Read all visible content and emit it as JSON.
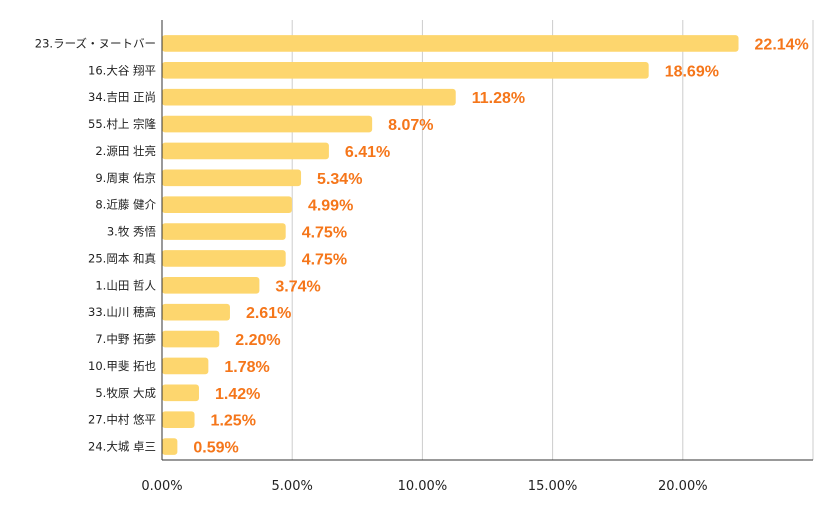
{
  "chart_data": {
    "type": "bar",
    "orientation": "horizontal",
    "categories": [
      "23.ラーズ・ヌートバー",
      "16.大谷 翔平",
      "34.吉田 正尚",
      "55.村上 宗隆",
      "2.源田 壮亮",
      "9.周東 佑京",
      "8.近藤 健介",
      "3.牧 秀悟",
      "25.岡本 和真",
      "1.山田 哲人",
      "33.山川 穂高",
      "7.中野 拓夢",
      "10.甲斐 拓也",
      "5.牧原 大成",
      "27.中村 悠平",
      "24.大城 卓三"
    ],
    "values": [
      22.14,
      18.69,
      11.28,
      8.07,
      6.41,
      5.34,
      4.99,
      4.75,
      4.75,
      3.74,
      2.61,
      2.2,
      1.78,
      1.42,
      1.25,
      0.59
    ],
    "data_labels": [
      "22.14%",
      "18.69%",
      "11.28%",
      "8.07%",
      "6.41%",
      "5.34%",
      "4.99%",
      "4.75%",
      "4.75%",
      "3.74%",
      "2.61%",
      "2.20%",
      "1.78%",
      "1.42%",
      "1.25%",
      "0.59%"
    ],
    "x_ticks": [
      0,
      5,
      10,
      15,
      20
    ],
    "x_tick_labels": [
      "0.00%",
      "5.00%",
      "10.00%",
      "15.00%",
      "20.00%"
    ],
    "xlim": [
      0,
      25
    ],
    "title": "",
    "xlabel": "",
    "ylabel": "",
    "grid": "vertical",
    "legend": "none",
    "colors": {
      "bar": "#fdd66e",
      "data_label": "#f5761a",
      "grid": "#cccccc",
      "axis": "#333333"
    }
  }
}
